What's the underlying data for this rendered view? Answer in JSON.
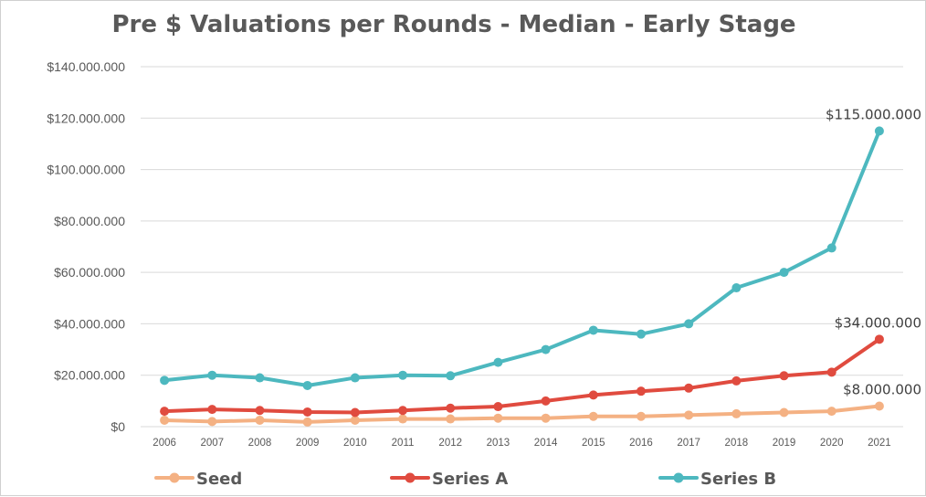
{
  "chart_data": {
    "type": "line",
    "title": "Pre $ Valuations per Rounds - Median - Early Stage",
    "xlabel": "",
    "ylabel": "",
    "x": [
      "2006",
      "2007",
      "2008",
      "2009",
      "2010",
      "2011",
      "2012",
      "2013",
      "2014",
      "2015",
      "2016",
      "2017",
      "2018",
      "2019",
      "2020",
      "2021"
    ],
    "ylim": [
      0,
      140000000
    ],
    "y_ticks": [
      {
        "value": 0,
        "label": "$0"
      },
      {
        "value": 20000000,
        "label": "$20.000.000"
      },
      {
        "value": 40000000,
        "label": "$40.000.000"
      },
      {
        "value": 60000000,
        "label": "$60.000.000"
      },
      {
        "value": 80000000,
        "label": "$80.000.000"
      },
      {
        "value": 100000000,
        "label": "$100.000.000"
      },
      {
        "value": 120000000,
        "label": "$120.000.000"
      },
      {
        "value": 140000000,
        "label": "$140.000.000"
      }
    ],
    "grid": true,
    "legend_position": "bottom",
    "series": [
      {
        "name": "Seed",
        "color": "#F4B183",
        "values": [
          2500000,
          2000000,
          2500000,
          1800000,
          2500000,
          3000000,
          3000000,
          3300000,
          3300000,
          4000000,
          4000000,
          4500000,
          5000000,
          5500000,
          6000000,
          8000000
        ],
        "end_label": "$8.000.000"
      },
      {
        "name": "Series A",
        "color": "#E04B3F",
        "values": [
          6000000,
          6700000,
          6300000,
          5700000,
          5500000,
          6300000,
          7200000,
          7800000,
          10000000,
          12300000,
          13800000,
          15000000,
          17800000,
          19800000,
          21200000,
          34000000
        ],
        "end_label": "$34.000.000"
      },
      {
        "name": "Series B",
        "color": "#4DB8BF",
        "values": [
          18000000,
          20000000,
          19000000,
          16000000,
          19000000,
          20000000,
          19800000,
          25000000,
          30000000,
          37500000,
          36000000,
          40000000,
          54000000,
          60000000,
          69500000,
          115000000
        ],
        "end_label": "$115.000.000"
      }
    ]
  }
}
